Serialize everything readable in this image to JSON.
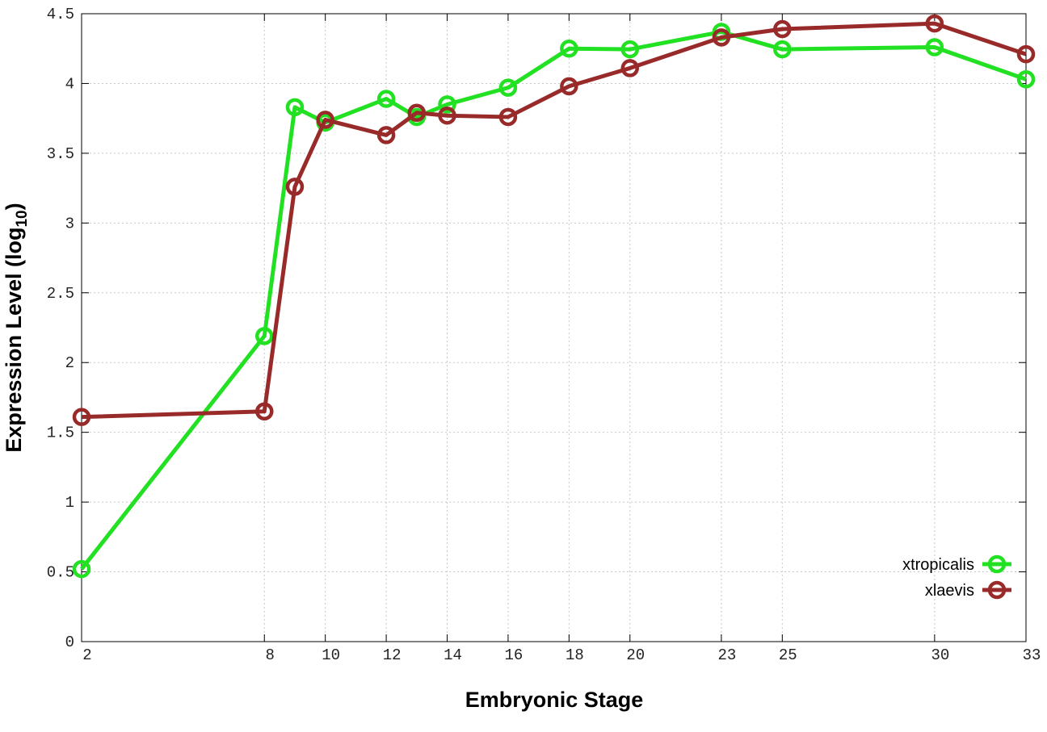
{
  "chart_data": {
    "type": "line",
    "xlabel": "Embryonic Stage",
    "ylabel": {
      "text": "Expression Level (log",
      "subscript": "10",
      "suffix": ")"
    },
    "x": [
      2,
      8,
      9,
      10,
      12,
      13,
      14,
      16,
      18,
      20,
      23,
      25,
      30,
      33
    ],
    "series": [
      {
        "name": "xtropicalis",
        "color": "#22e022",
        "values": [
          0.52,
          2.19,
          3.83,
          3.72,
          3.89,
          3.76,
          3.85,
          3.97,
          4.25,
          4.245,
          4.37,
          4.245,
          4.26,
          4.03
        ]
      },
      {
        "name": "xlaevis",
        "color": "#992a2a",
        "values": [
          1.61,
          1.65,
          3.26,
          3.74,
          3.63,
          3.79,
          3.77,
          3.76,
          3.98,
          4.11,
          4.33,
          4.39,
          4.43,
          4.21
        ]
      }
    ],
    "xlim": [
      2,
      33
    ],
    "ylim": [
      0,
      4.5
    ],
    "xticks": [
      2,
      8,
      10,
      12,
      14,
      16,
      18,
      20,
      23,
      25,
      30,
      33
    ],
    "yticks": [
      0,
      0.5,
      1,
      1.5,
      2,
      2.5,
      3,
      3.5,
      4,
      4.5
    ],
    "grid": true,
    "legend": "lower right"
  }
}
